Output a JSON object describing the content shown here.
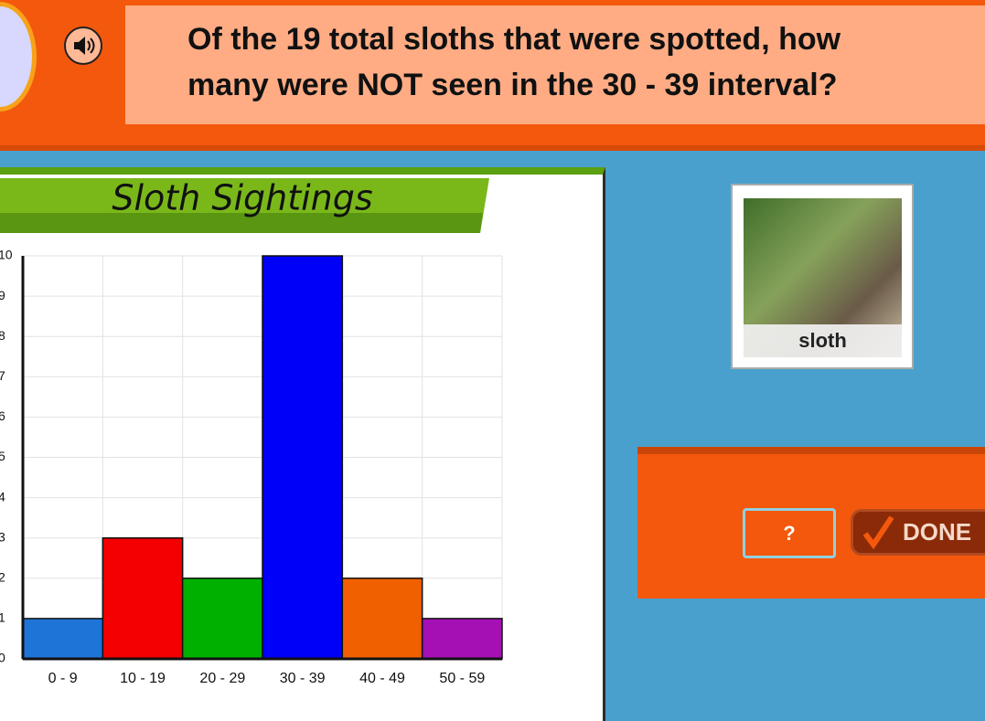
{
  "question": {
    "lines": [
      "Of the 19 total sloths that were spotted, how",
      "many were NOT seen in the 30 - 39 interval?"
    ]
  },
  "chart_data": {
    "type": "bar",
    "title": "Sloth Sightings",
    "categories": [
      "0 - 9",
      "10 - 19",
      "20 - 29",
      "30 - 39",
      "40 - 49",
      "50 - 59"
    ],
    "values": [
      1,
      3,
      2,
      10,
      2,
      1
    ],
    "colors": [
      "#1f74d8",
      "#f40000",
      "#00b000",
      "#0000f8",
      "#f06000",
      "#a410b4"
    ],
    "ylim": [
      0,
      10
    ],
    "yticks": [
      0,
      1,
      2,
      3,
      4,
      5,
      6,
      7,
      8,
      9,
      10
    ],
    "grid": true
  },
  "card": {
    "label": "sloth"
  },
  "answer": {
    "placeholder": "?",
    "button": "DONE"
  }
}
